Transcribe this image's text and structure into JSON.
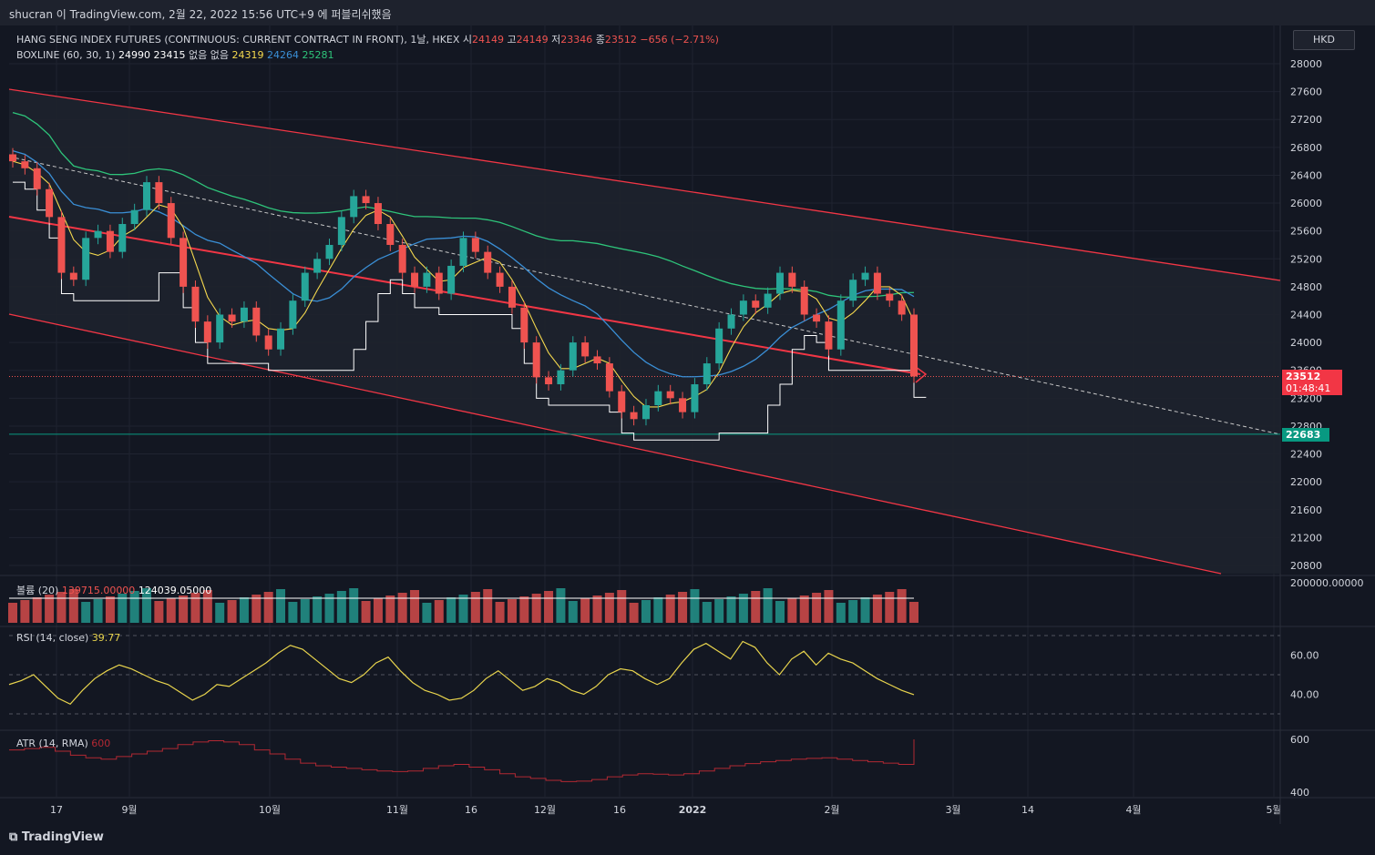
{
  "header": {
    "title": "shucran 이 TradingView.com, 2월 22, 2022 15:56 UTC+9 에 퍼블리쉬했음"
  },
  "legend": {
    "symbol": "HANG SENG INDEX FUTURES (CONTINUOUS: CURRENT CONTRACT IN FRONT), 1날, HKEX",
    "o_label": "시",
    "o_val": "24149",
    "h_label": "고",
    "h_val": "24149",
    "l_label": "저",
    "l_val": "23346",
    "c_label": "종",
    "c_val": "23512",
    "change": "−656 (−2.71%)",
    "boxline_label": "BOXLINE (60, 30, 1)",
    "boxline_v1": "24990",
    "boxline_v2": "23415",
    "boxline_na1": "없음",
    "boxline_na2": "없음",
    "boxline_v3": "24319",
    "boxline_v4": "24264",
    "boxline_v5": "25281",
    "volume_label": "볼륨 (20)",
    "volume_v1": "139715.00000",
    "volume_v2": "124039.05000",
    "rsi_label": "RSI (14, close)",
    "rsi_val": "39.77",
    "atr_label": "ATR (14, RMA)",
    "atr_val": "600"
  },
  "currency": "HKD",
  "price_label": {
    "value": "23512",
    "countdown": "01:48:41"
  },
  "support_label": "22683",
  "footer": {
    "logo": "TradingView"
  },
  "colors": {
    "background": "#131722",
    "up": "#26a69a",
    "down": "#ef5350",
    "channel": "#f23645",
    "ma_yellow": "#f5d94e",
    "ma_blue": "#3a8fd6",
    "ma_green": "#2ec47a",
    "boxline": "#ffffff",
    "support": "#089981",
    "rsi": "#e8d44d",
    "atr": "#b22833"
  },
  "chart_data": [
    {
      "type": "candlestick",
      "title": "HANG SENG INDEX FUTURES (CONTINUOUS: CURRENT CONTRACT IN FRONT), 1날, HKEX",
      "yticks": [
        28000,
        27600,
        27200,
        26800,
        26400,
        26000,
        25600,
        25200,
        24800,
        24400,
        24000,
        23600,
        23200,
        22800,
        22400,
        22000,
        21600,
        21200,
        20800
      ],
      "ylim": [
        20700,
        28400
      ],
      "xticks": [
        "17",
        "9월",
        "10월",
        "11월",
        "16",
        "12월",
        "16",
        "2022",
        "2월",
        "3월",
        "14",
        "4월",
        "5월"
      ],
      "close_path": [
        26600,
        26500,
        26200,
        25800,
        25000,
        24900,
        25500,
        25600,
        25300,
        25700,
        25900,
        26300,
        26000,
        25500,
        24800,
        24300,
        24000,
        24400,
        24300,
        24500,
        24100,
        23900,
        24200,
        24600,
        25000,
        25200,
        25400,
        25800,
        26100,
        26000,
        25700,
        25400,
        25000,
        24800,
        25000,
        24700,
        25100,
        25500,
        25300,
        25000,
        24800,
        24500,
        24000,
        23500,
        23400,
        23600,
        24000,
        23800,
        23700,
        23300,
        23000,
        22900,
        23100,
        23300,
        23200,
        23000,
        23400,
        23700,
        24200,
        24400,
        24600,
        24500,
        24700,
        25000,
        24800,
        24400,
        24300,
        23900,
        24600,
        24900,
        25000,
        24700,
        24600,
        24400,
        23512
      ],
      "last": 23512,
      "support": 22683
    },
    {
      "type": "bar",
      "title": "볼륨 (20)",
      "series": [
        {
          "name": "volume",
          "values": []
        }
      ],
      "ytick": "200000.00000"
    },
    {
      "type": "line",
      "title": "RSI (14, close)",
      "yticks": [
        60.0,
        40.0
      ],
      "ylim": [
        30,
        70
      ],
      "values": [
        45,
        47,
        50,
        44,
        38,
        35,
        42,
        48,
        52,
        55,
        53,
        50,
        47,
        45,
        41,
        37,
        40,
        45,
        44,
        48,
        52,
        56,
        61,
        65,
        63,
        58,
        53,
        48,
        46,
        50,
        56,
        59,
        52,
        46,
        42,
        40,
        37,
        38,
        42,
        48,
        52,
        47,
        42,
        44,
        48,
        46,
        42,
        40,
        44,
        50,
        53,
        52,
        48,
        45,
        48,
        56,
        63,
        66,
        62,
        58,
        67,
        64,
        56,
        50,
        58,
        62,
        55,
        61,
        58,
        56,
        52,
        48,
        45,
        42,
        39.77
      ]
    },
    {
      "type": "line",
      "title": "ATR (14, RMA)",
      "yticks": [
        600,
        400
      ],
      "ylim": [
        380,
        620
      ],
      "values": [
        560,
        565,
        570,
        555,
        540,
        530,
        525,
        535,
        545,
        555,
        565,
        580,
        590,
        595,
        590,
        580,
        560,
        545,
        525,
        510,
        500,
        495,
        490,
        485,
        480,
        478,
        480,
        490,
        500,
        505,
        495,
        485,
        470,
        458,
        452,
        445,
        440,
        442,
        448,
        458,
        465,
        470,
        468,
        465,
        470,
        480,
        490,
        500,
        508,
        515,
        520,
        525,
        528,
        530,
        525,
        520,
        515,
        510,
        505,
        600
      ]
    }
  ]
}
